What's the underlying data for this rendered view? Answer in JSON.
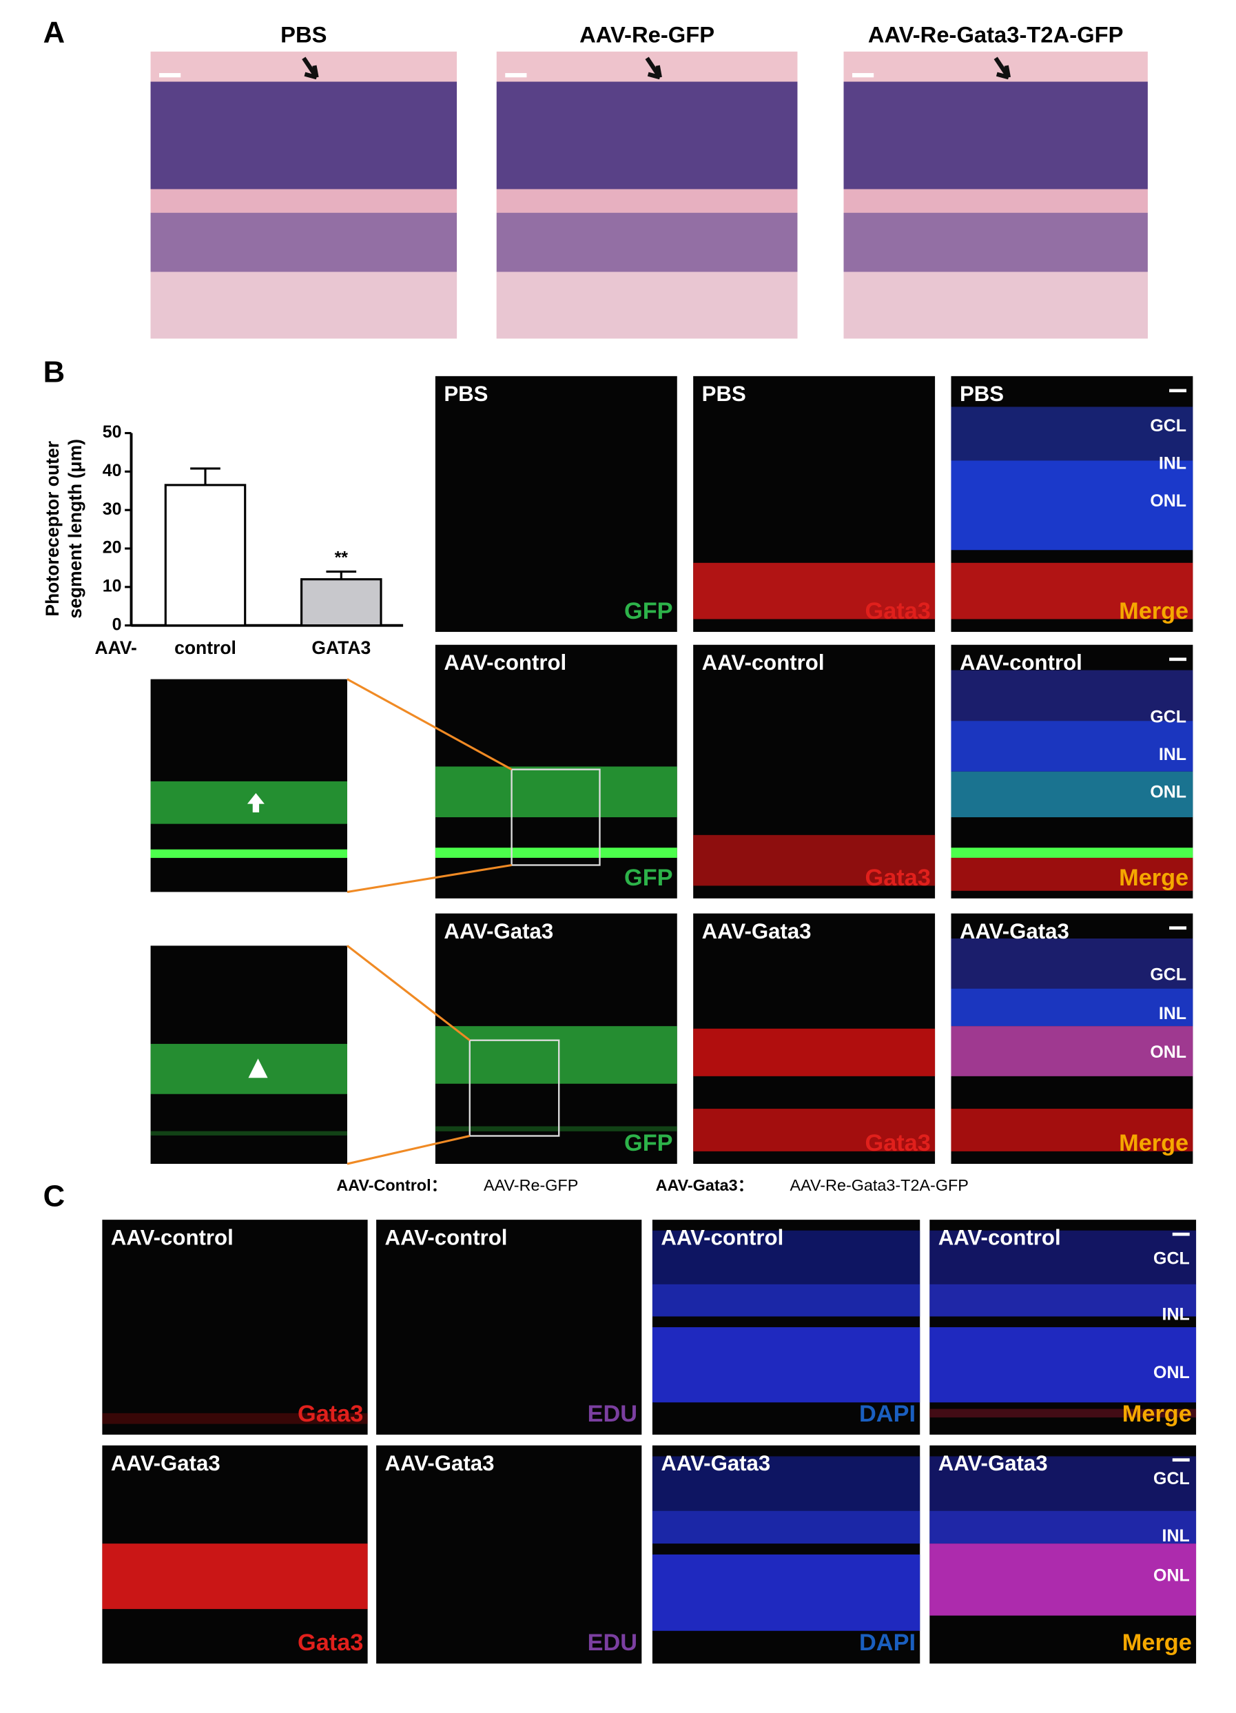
{
  "chart_data": {
    "type": "bar",
    "ylabel": [
      "Photoreceptor outer",
      "segment length (μm)"
    ],
    "x_prefix": "AAV-",
    "categories": [
      "control",
      "GATA3"
    ],
    "values": [
      36.5,
      12
    ],
    "errors": [
      4.3,
      2
    ],
    "colors": [
      "#ffffff",
      "#c8c8cc"
    ],
    "significance": "**",
    "ylim": [
      0,
      50
    ],
    "yticks": [
      0,
      10,
      20,
      30,
      40,
      50
    ]
  },
  "figure": {
    "panel_labels": [
      "A",
      "B",
      "C"
    ],
    "a_titles": [
      "PBS",
      "AAV-Re-GFP",
      "AAV-Re-Gata3-T2A-GFP"
    ],
    "layers": [
      "GCL",
      "INL",
      "ONL"
    ],
    "b_rows": [
      [
        {
          "title": "PBS",
          "channel": "GFP",
          "color": "#2db34a"
        },
        {
          "title": "PBS",
          "channel": "Gata3",
          "color": "#e0201c"
        },
        {
          "title": "PBS",
          "channel": "Merge",
          "color": "#f5a800"
        }
      ],
      [
        {
          "title": "AAV-control",
          "channel": "GFP",
          "color": "#2db34a"
        },
        {
          "title": "AAV-control",
          "channel": "Gata3",
          "color": "#e0201c"
        },
        {
          "title": "AAV-control",
          "channel": "Merge",
          "color": "#f5a800"
        }
      ],
      [
        {
          "title": "AAV-Gata3",
          "channel": "GFP",
          "color": "#2db34a"
        },
        {
          "title": "AAV-Gata3",
          "channel": "Gata3",
          "color": "#e0201c"
        },
        {
          "title": "AAV-Gata3",
          "channel": "Merge",
          "color": "#f5a800"
        }
      ]
    ],
    "legend": [
      {
        "name": "AAV-Control：",
        "desc": "AAV-Re-GFP"
      },
      {
        "name": "AAV-Gata3：",
        "desc": "AAV-Re-Gata3-T2A-GFP"
      }
    ],
    "c_rows": [
      [
        {
          "title": "AAV-control",
          "channel": "Gata3",
          "color": "#e0201c"
        },
        {
          "title": "AAV-control",
          "channel": "EDU",
          "color": "#7b3fa0"
        },
        {
          "title": "AAV-control",
          "channel": "DAPI",
          "color": "#1a5fc0"
        },
        {
          "title": "AAV-control",
          "channel": "Merge",
          "color": "#f5a800"
        }
      ],
      [
        {
          "title": "AAV-Gata3",
          "channel": "Gata3",
          "color": "#e0201c"
        },
        {
          "title": "AAV-Gata3",
          "channel": "EDU",
          "color": "#7b3fa0"
        },
        {
          "title": "AAV-Gata3",
          "channel": "DAPI",
          "color": "#1a5fc0"
        },
        {
          "title": "AAV-Gata3",
          "channel": "Merge",
          "color": "#f5a800"
        }
      ]
    ]
  }
}
